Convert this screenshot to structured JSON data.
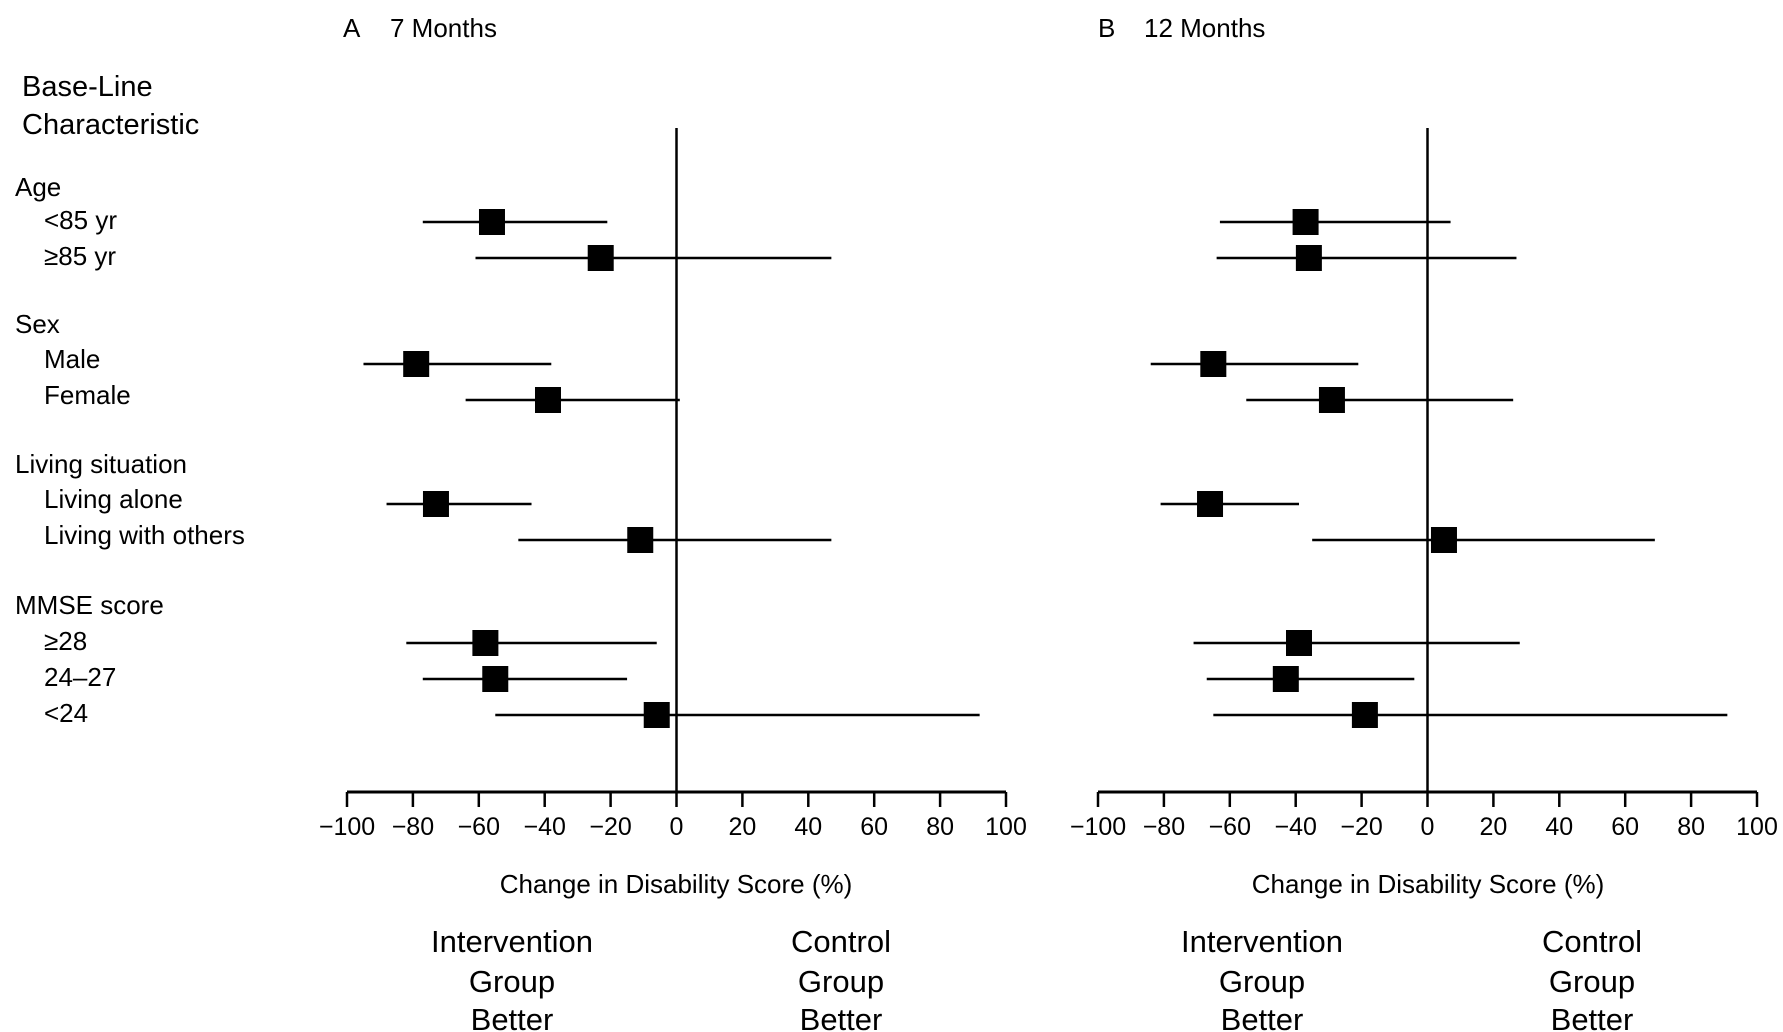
{
  "row_header": [
    "Base-Line",
    "Characteristic"
  ],
  "groups": [
    {
      "label": "Age",
      "rows": [
        "<85 yr",
        "≥85 yr"
      ]
    },
    {
      "label": "Sex",
      "rows": [
        "Male",
        "Female"
      ]
    },
    {
      "label": "Living situation",
      "rows": [
        "Living alone",
        "Living with others"
      ]
    },
    {
      "label": "MMSE score",
      "rows": [
        "≥28",
        "24–27",
        "<24"
      ]
    }
  ],
  "chart_data": [
    {
      "type": "forest",
      "panel_letter": "A",
      "title": "7 Months",
      "xlabel": "Change in Disability Score (%)",
      "xlim": [
        -100,
        100
      ],
      "xticks": [
        -100,
        -80,
        -60,
        -40,
        -20,
        0,
        20,
        40,
        60,
        80,
        100
      ],
      "favors_left": [
        "Intervention",
        "Group",
        "Better"
      ],
      "favors_right": [
        "Control",
        "Group",
        "Better"
      ],
      "rows": [
        {
          "label": "<85 yr",
          "estimate": -56,
          "lower": -77,
          "upper": -21
        },
        {
          "label": "≥85 yr",
          "estimate": -23,
          "lower": -61,
          "upper": 47
        },
        {
          "label": "Male",
          "estimate": -79,
          "lower": -95,
          "upper": -38
        },
        {
          "label": "Female",
          "estimate": -39,
          "lower": -64,
          "upper": 1
        },
        {
          "label": "Living alone",
          "estimate": -73,
          "lower": -88,
          "upper": -44
        },
        {
          "label": "Living with others",
          "estimate": -11,
          "lower": -48,
          "upper": 47
        },
        {
          "label": "≥28",
          "estimate": -58,
          "lower": -82,
          "upper": -6
        },
        {
          "label": "24–27",
          "estimate": -55,
          "lower": -77,
          "upper": -15
        },
        {
          "label": "<24",
          "estimate": -6,
          "lower": -55,
          "upper": 92
        }
      ]
    },
    {
      "type": "forest",
      "panel_letter": "B",
      "title": "12 Months",
      "xlabel": "Change in Disability Score (%)",
      "xlim": [
        -100,
        100
      ],
      "xticks": [
        -100,
        -80,
        -60,
        -40,
        -20,
        0,
        20,
        40,
        60,
        80,
        100
      ],
      "favors_left": [
        "Intervention",
        "Group",
        "Better"
      ],
      "favors_right": [
        "Control",
        "Group",
        "Better"
      ],
      "rows": [
        {
          "label": "<85 yr",
          "estimate": -37,
          "lower": -63,
          "upper": 7
        },
        {
          "label": "≥85 yr",
          "estimate": -36,
          "lower": -64,
          "upper": 27
        },
        {
          "label": "Male",
          "estimate": -65,
          "lower": -84,
          "upper": -21
        },
        {
          "label": "Female",
          "estimate": -29,
          "lower": -55,
          "upper": 26
        },
        {
          "label": "Living alone",
          "estimate": -66,
          "lower": -81,
          "upper": -39
        },
        {
          "label": "Living with others",
          "estimate": 5,
          "lower": -35,
          "upper": 69
        },
        {
          "label": "≥28",
          "estimate": -39,
          "lower": -71,
          "upper": 28
        },
        {
          "label": "24–27",
          "estimate": -43,
          "lower": -67,
          "upper": -4
        },
        {
          "label": "<24",
          "estimate": -19,
          "lower": -65,
          "upper": 91
        }
      ]
    }
  ]
}
